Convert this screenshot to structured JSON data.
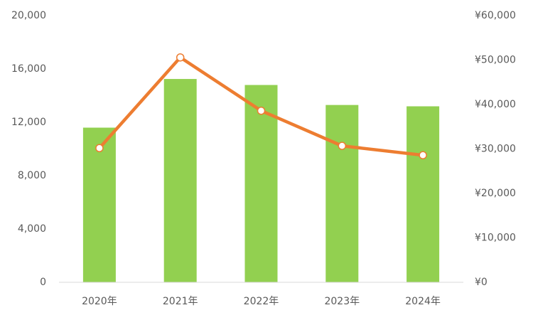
{
  "chart_data": {
    "type": "combo",
    "categories": [
      "2020年",
      "2021年",
      "2022年",
      "2023年",
      "2024年"
    ],
    "series": [
      {
        "type": "bar",
        "axis": "y",
        "color": "#92d050",
        "values": [
          11600,
          15250,
          14800,
          13300,
          13200
        ]
      },
      {
        "type": "line",
        "axis": "y2",
        "color": "#ed7d31",
        "values": [
          30200,
          50600,
          38600,
          30700,
          28600
        ]
      }
    ],
    "ylim": [
      0,
      20000
    ],
    "yticks": [
      0,
      {
        "value": 4000,
        "label": "4,000"
      },
      {
        "value": 8000,
        "label": "8,000"
      },
      {
        "value": 12000,
        "label": "12,000"
      },
      {
        "value": 16000,
        "label": "16,000"
      },
      {
        "value": 20000,
        "label": "20,000"
      }
    ],
    "y2lim": [
      0,
      60000
    ],
    "y2ticks": [
      {
        "value": 0,
        "label": "¥0"
      },
      {
        "value": 10000,
        "label": "¥10,000"
      },
      {
        "value": 20000,
        "label": "¥20,000"
      },
      {
        "value": 30000,
        "label": "¥30,000"
      },
      {
        "value": 40000,
        "label": "¥40,000"
      },
      {
        "value": 50000,
        "label": "¥50,000"
      },
      {
        "value": 60000,
        "label": "¥60,000"
      }
    ],
    "grid": false
  }
}
